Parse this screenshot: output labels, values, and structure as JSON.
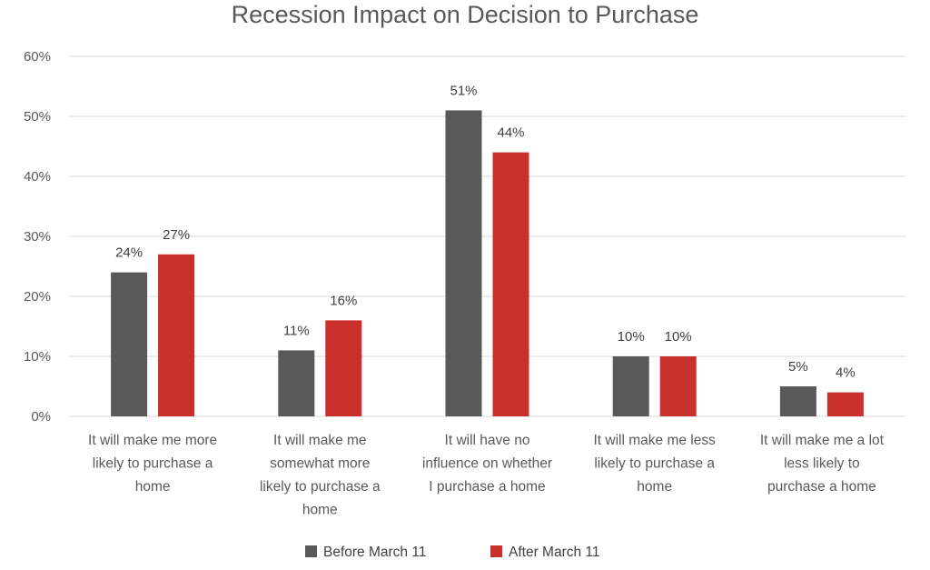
{
  "chart_data": {
    "type": "bar",
    "title": "Recession Impact on Decision to Purchase",
    "categories": [
      [
        "It will make me more",
        "likely to purchase a",
        "home"
      ],
      [
        "It will make me",
        "somewhat more",
        "likely to purchase a",
        "home"
      ],
      [
        "It will have no",
        "influence on whether",
        "I purchase a home"
      ],
      [
        "It will make me less",
        "likely to purchase a",
        "home"
      ],
      [
        "It will make me a lot",
        "less likely to",
        "purchase a home"
      ]
    ],
    "series": [
      {
        "name": "Before March 11",
        "values": [
          24,
          11,
          51,
          10,
          5
        ],
        "labels": [
          "24%",
          "11%",
          "51%",
          "10%",
          "5%"
        ],
        "color": "#595959"
      },
      {
        "name": "After March 11",
        "values": [
          27,
          16,
          44,
          10,
          4
        ],
        "labels": [
          "27%",
          "16%",
          "44%",
          "10%",
          "4%"
        ],
        "color": "#c9302c"
      }
    ],
    "ylim": [
      0,
      60
    ],
    "yticks": [
      0,
      10,
      20,
      30,
      40,
      50,
      60
    ],
    "ytick_labels": [
      "0%",
      "10%",
      "20%",
      "30%",
      "40%",
      "50%",
      "60%"
    ],
    "grid": true,
    "legend": "bottom"
  }
}
